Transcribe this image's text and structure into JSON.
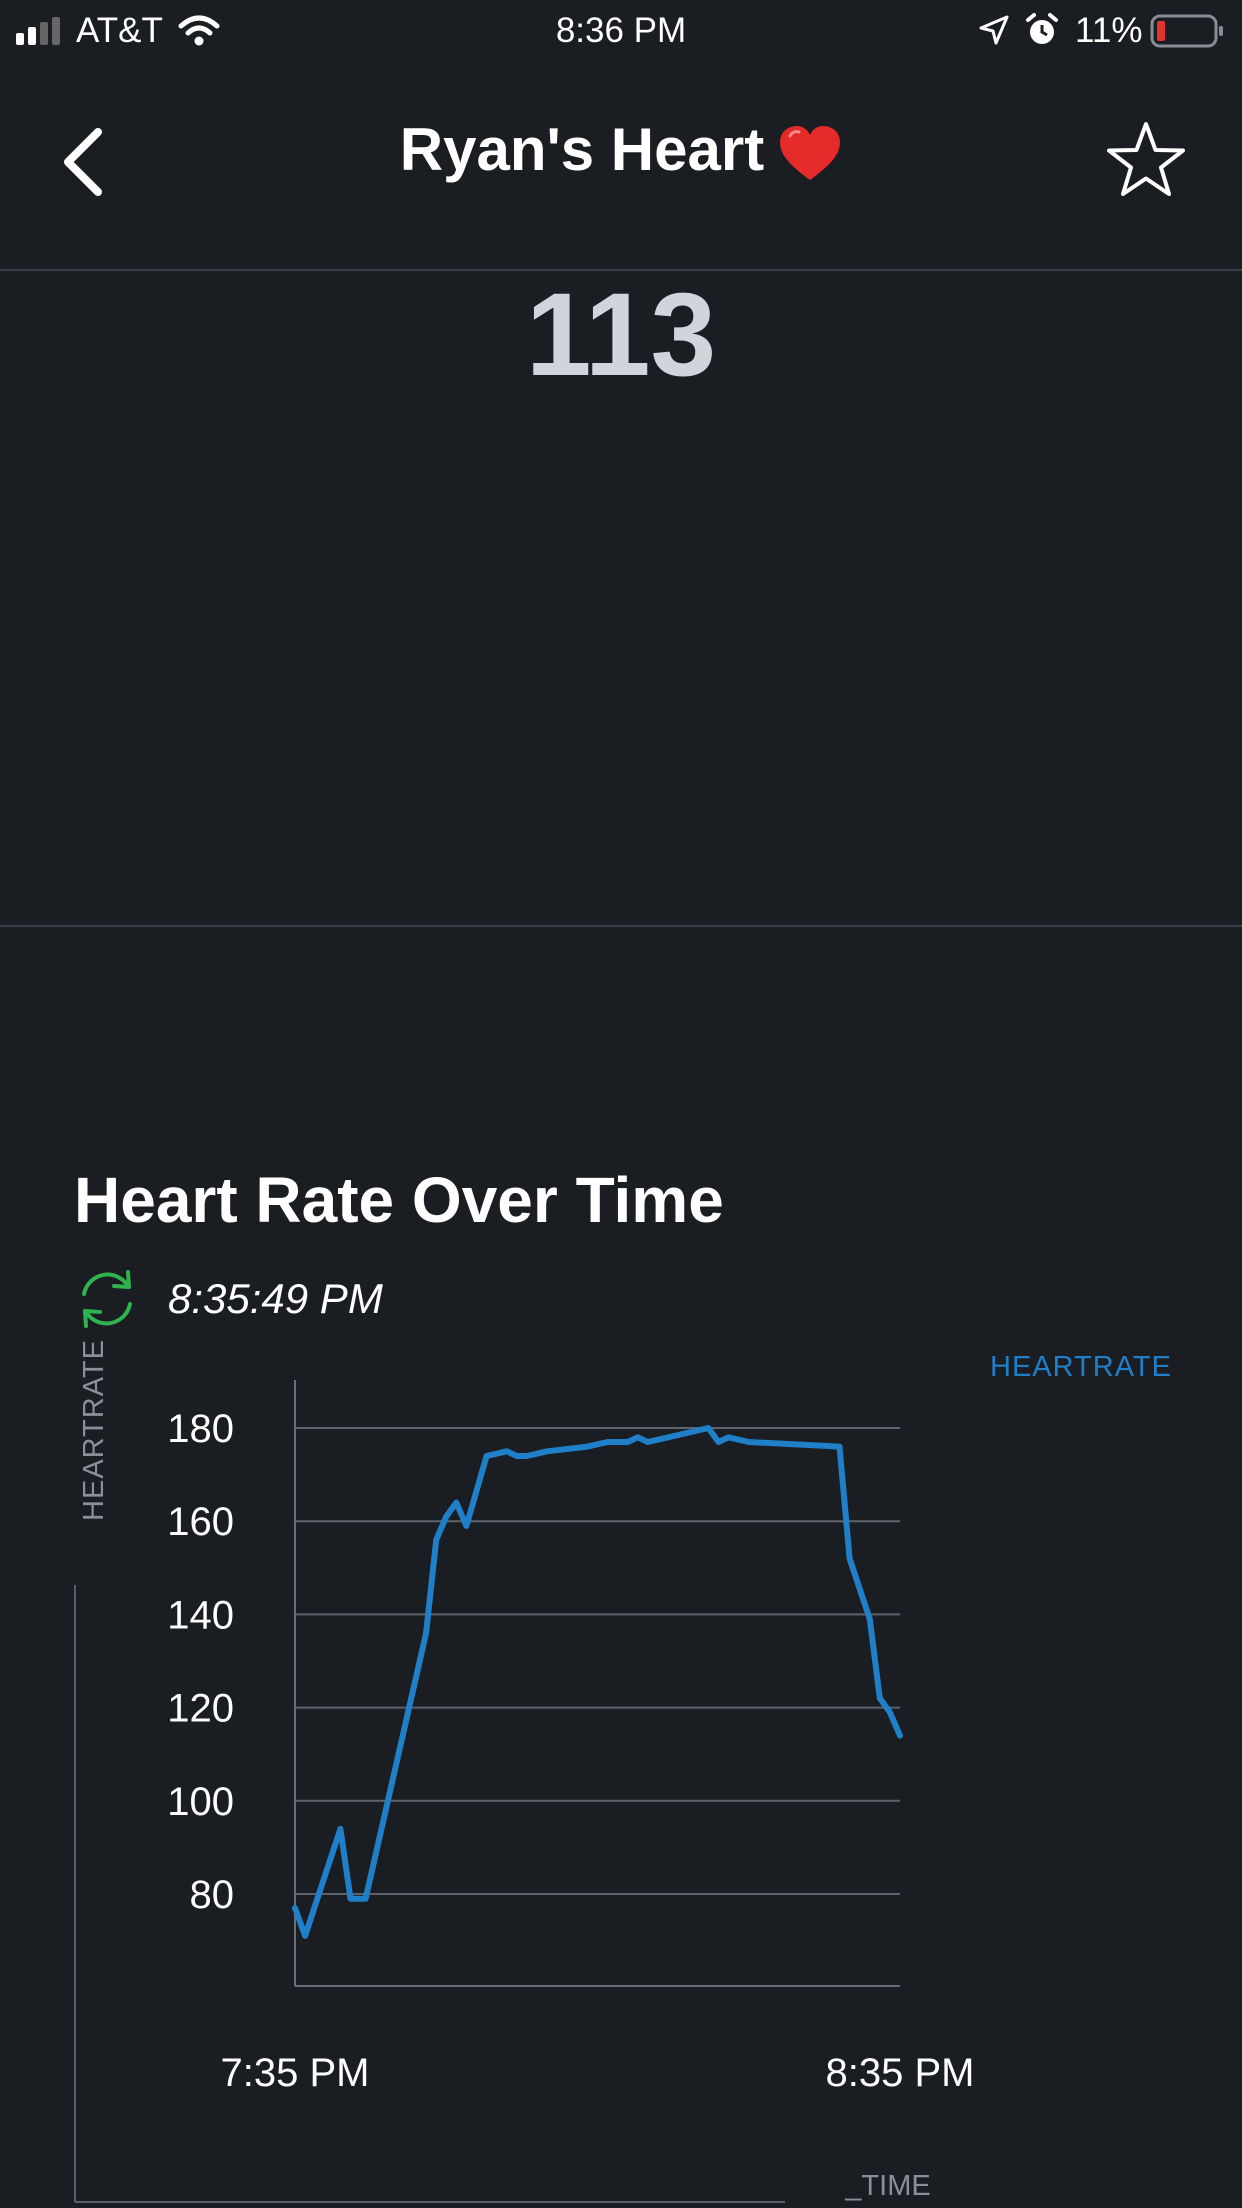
{
  "status_bar": {
    "carrier": "AT&T",
    "time": "8:36 PM",
    "battery": "11%",
    "icons": [
      "signal-icon",
      "wifi-icon",
      "location-arrow-icon",
      "alarm-clock-icon",
      "battery-low-icon"
    ]
  },
  "nav": {
    "title": "Ryan's Heart",
    "back_icon": "chevron-left-icon",
    "favorite_icon": "star-outline-icon",
    "title_emoji": "red-heart-icon"
  },
  "current_value": "113",
  "section": {
    "title": "Heart Rate Over Time",
    "last_updated": "8:35:49 PM",
    "refresh_icon": "refresh-icon"
  },
  "colors": {
    "background": "#1a1d21",
    "line": "#1f7fc8",
    "refresh": "#2fb34f",
    "battery_low": "#e5322c"
  },
  "chart_data": {
    "type": "line",
    "ylabel": "HEARTRATE",
    "xlabel": "_TIME",
    "legend": [
      "HEARTRATE"
    ],
    "legend_position": "top-right",
    "ylim": [
      60,
      180
    ],
    "yticks": [
      80,
      100,
      120,
      140,
      160,
      180
    ],
    "xticks": [
      "7:35 PM",
      "8:35 PM"
    ],
    "grid": true,
    "series": [
      {
        "name": "HEARTRATE",
        "x_minutes_after_7_35": [
          0,
          1,
          4.5,
          5.5,
          7,
          13,
          14,
          15,
          16,
          17,
          19,
          21,
          22,
          23,
          25,
          29,
          31,
          33,
          34,
          35,
          41,
          42,
          43,
          45,
          54,
          55,
          57,
          58,
          59,
          60
        ],
        "values": [
          77,
          71,
          94,
          79,
          79,
          136,
          156,
          161,
          164,
          159,
          174,
          175,
          174,
          174,
          175,
          176,
          177,
          177,
          178,
          177,
          180,
          177,
          178,
          177,
          176,
          152,
          139,
          122,
          119,
          114
        ]
      }
    ]
  }
}
